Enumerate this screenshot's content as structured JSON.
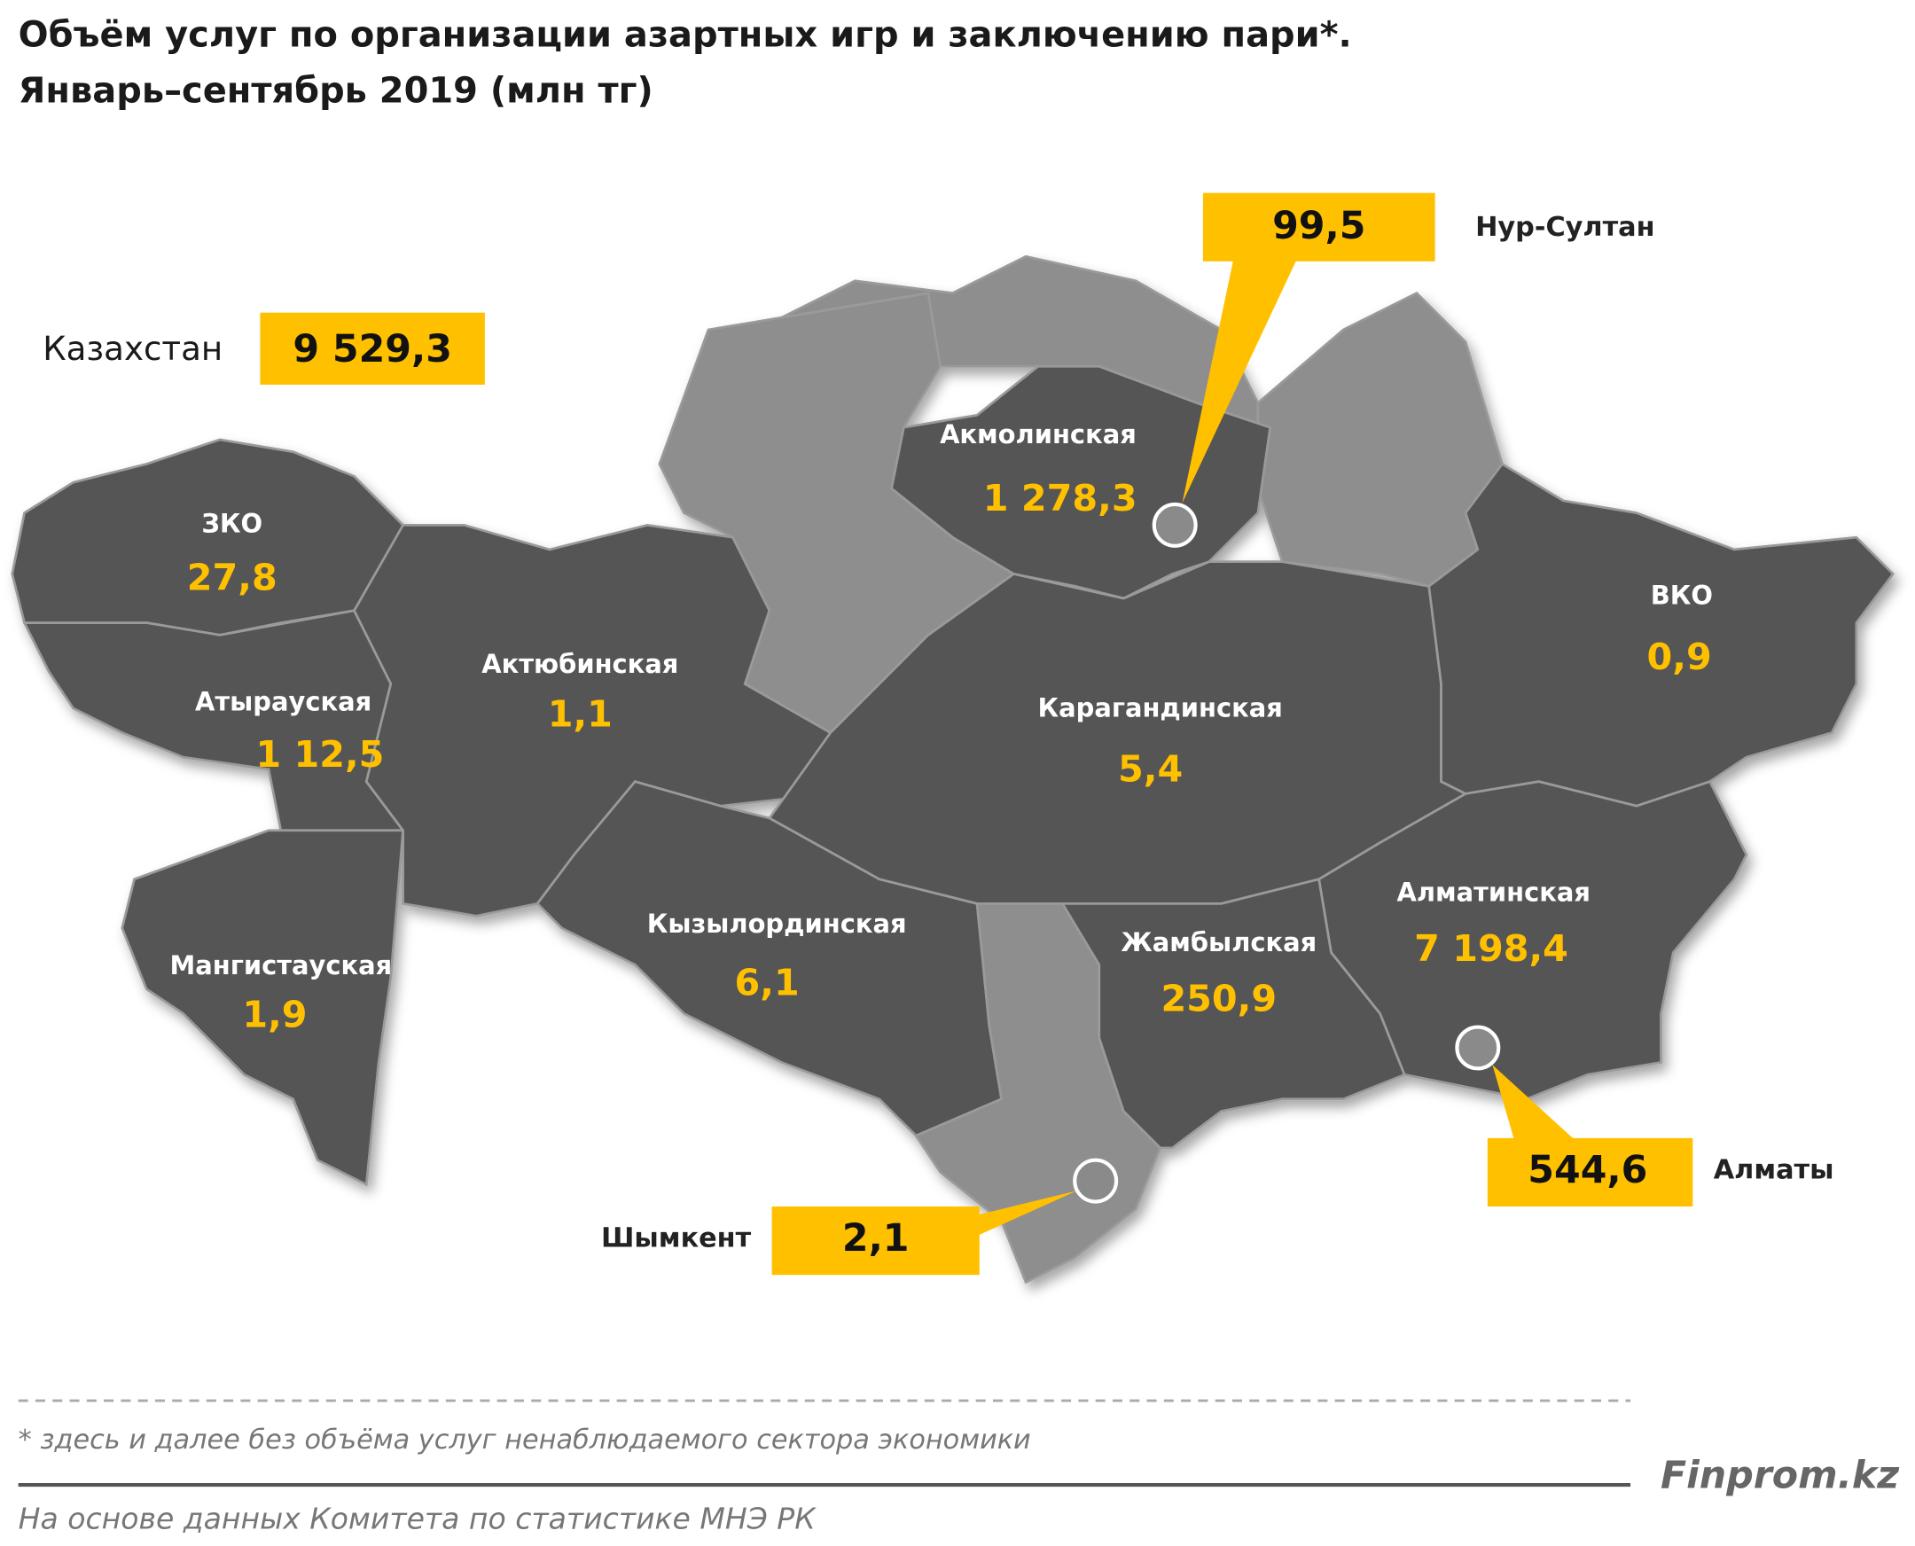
{
  "header": {
    "title": "Объём услуг по организации азартных игр и заключению пари*.",
    "subtitle": "Январь–сентябрь 2019  (млн тг)"
  },
  "total": {
    "label": "Казахстан",
    "value": "9 529,3"
  },
  "regions": [
    {
      "name": "ЗКО",
      "value": "27,8"
    },
    {
      "name": "Атырауская",
      "value": "1 12,5"
    },
    {
      "name": "Актюбинская",
      "value": "1,1"
    },
    {
      "name": "Мангистауская",
      "value": "1,9"
    },
    {
      "name": "Акмолинская",
      "value": "1 278,3"
    },
    {
      "name": "Карагандинская",
      "value": "5,4"
    },
    {
      "name": "ВКО",
      "value": "0,9"
    },
    {
      "name": "Кызылординская",
      "value": "6,1"
    },
    {
      "name": "Жамбылская",
      "value": "250,9"
    },
    {
      "name": "Алматинская",
      "value": "7 198,4"
    }
  ],
  "cities": [
    {
      "name": "Нур-Султан",
      "value": "99,5"
    },
    {
      "name": "Алматы",
      "value": "544,6"
    },
    {
      "name": "Шымкент",
      "value": "2,1"
    }
  ],
  "footnote": "* здесь и далее без объёма услуг ненаблюдаемого сектора экономики",
  "source": "На основе данных  Комитета по статистике МНЭ РК",
  "brand": "Finprom.kz"
}
